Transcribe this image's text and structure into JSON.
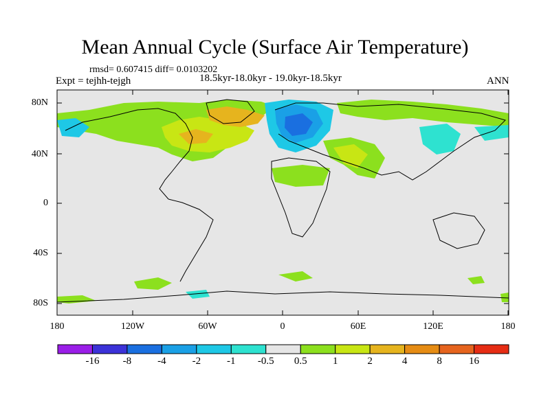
{
  "title": "Mean Annual Cycle (Surface Air Temperature)",
  "stats": "rmsd= 0.607415 diff= 0.0103202",
  "experiment": "Expt = tejhh-tejgh",
  "period": "18.5kyr-18.0kyr - 19.0kyr-18.5kyr",
  "season": "ANN",
  "lat_labels": [
    "80N",
    "40N",
    "0",
    "40S",
    "80S"
  ],
  "lon_labels": [
    "180",
    "120W",
    "60W",
    "0",
    "60E",
    "120E",
    "180"
  ],
  "colorbar": {
    "colors": [
      "#9a1ee8",
      "#3c32d8",
      "#1a6fe0",
      "#1aa0e6",
      "#1ec8e6",
      "#2ee2d0",
      "#e6e6e6",
      "#8ce01e",
      "#c8e614",
      "#e6b41e",
      "#e68c14",
      "#e6641e",
      "#e62d14"
    ],
    "labels": [
      "-16",
      "-8",
      "-4",
      "-2",
      "-1",
      "-0.5",
      "0.5",
      "1",
      "2",
      "4",
      "8",
      "16"
    ]
  },
  "map": {
    "background": "#e6e6e6",
    "lon_range": [
      -180,
      180
    ],
    "lat_range": [
      -90,
      90
    ]
  }
}
